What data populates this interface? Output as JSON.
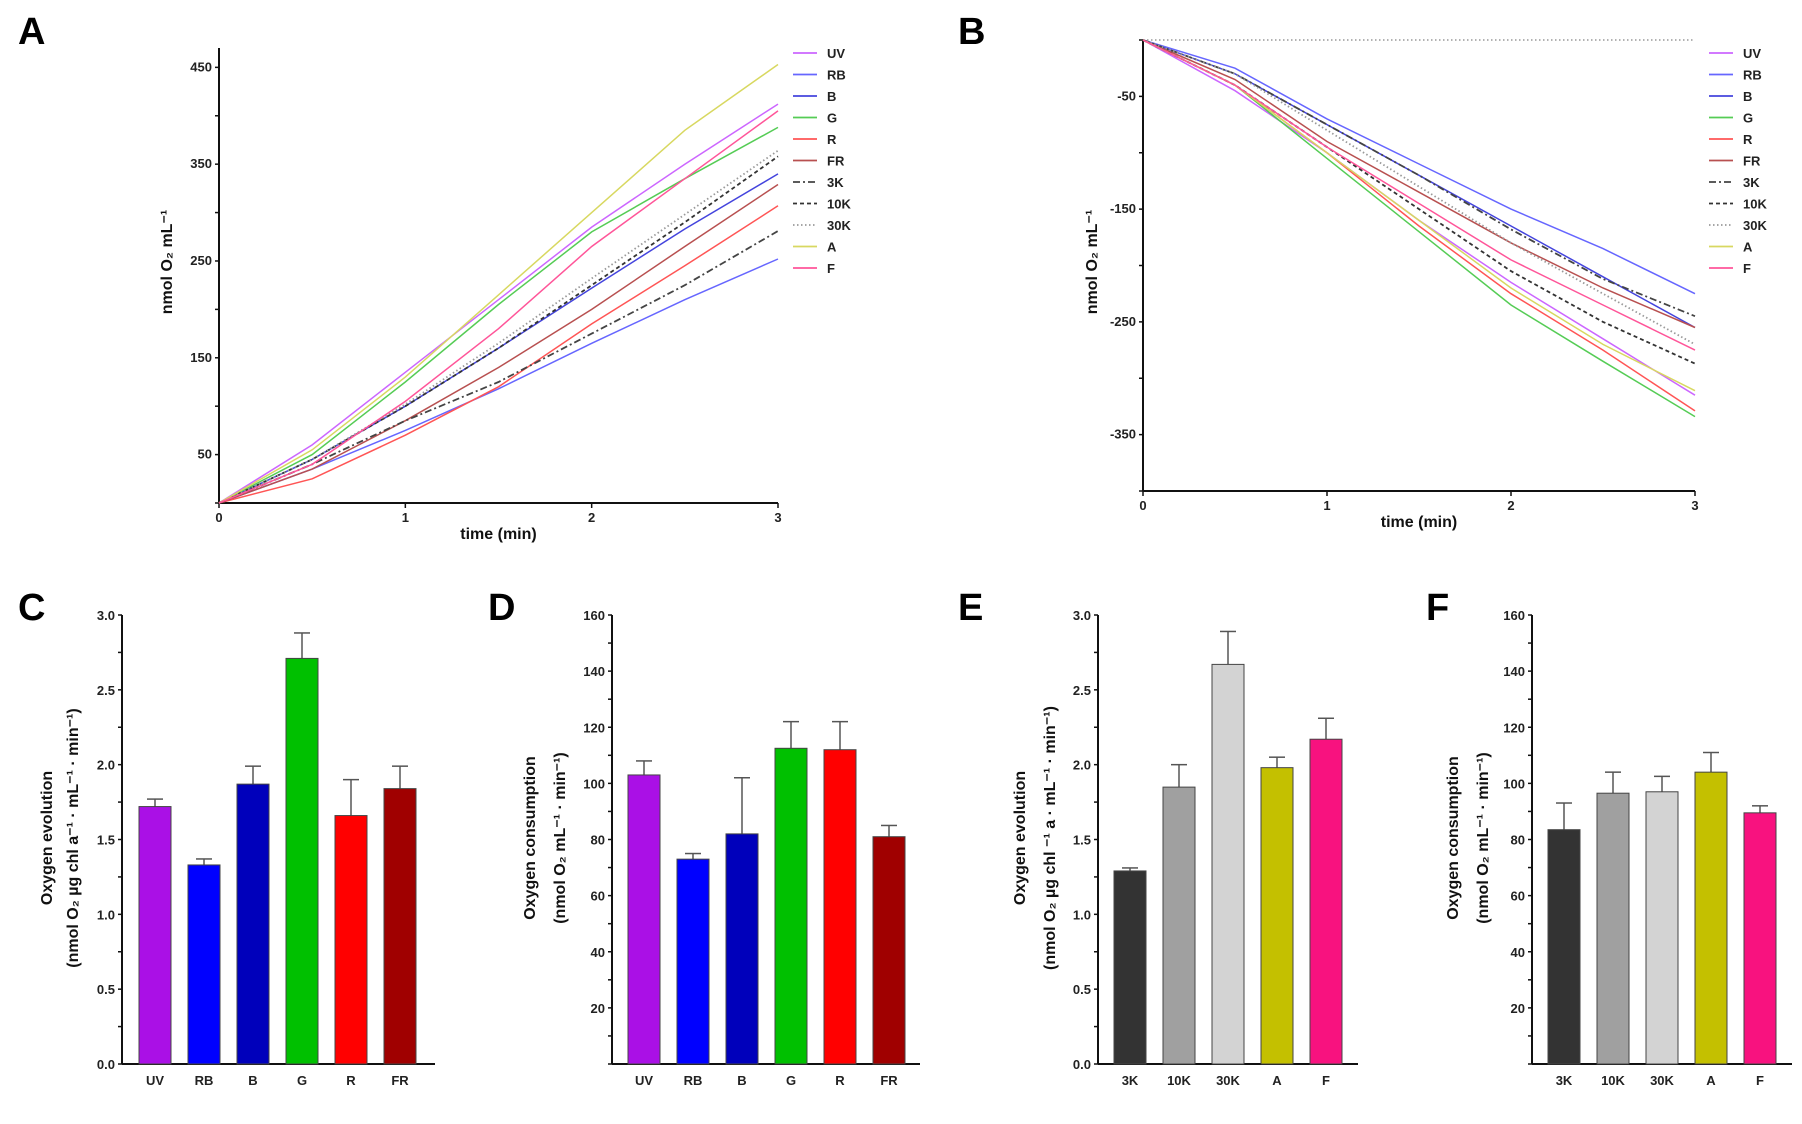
{
  "panel_labels": [
    "A",
    "B",
    "C",
    "D",
    "E",
    "F"
  ],
  "chart_data": [
    {
      "panel": "A",
      "type": "line",
      "xlabel": "time (min)",
      "ylabel": "nmol O₂ mL⁻¹",
      "xlim": [
        0,
        3
      ],
      "ylim": [
        0,
        470
      ],
      "x_ticks": [
        0,
        1,
        2,
        3
      ],
      "y_ticks": [
        50,
        150,
        250,
        350,
        450
      ],
      "x": [
        0,
        0.5,
        1,
        1.5,
        2,
        2.5,
        3
      ],
      "legend_position": "right",
      "series": [
        {
          "name": "UV",
          "color": "#cc66ff",
          "style": "solid",
          "values": [
            0,
            60,
            135,
            210,
            285,
            350,
            412
          ]
        },
        {
          "name": "RB",
          "color": "#6666ff",
          "style": "solid",
          "values": [
            0,
            35,
            75,
            118,
            165,
            210,
            252
          ]
        },
        {
          "name": "B",
          "color": "#4444dd",
          "style": "solid",
          "values": [
            0,
            45,
            100,
            160,
            222,
            283,
            340
          ]
        },
        {
          "name": "G",
          "color": "#55cc55",
          "style": "solid",
          "values": [
            0,
            50,
            125,
            205,
            280,
            335,
            388
          ]
        },
        {
          "name": "R",
          "color": "#ff5555",
          "style": "solid",
          "values": [
            0,
            25,
            70,
            120,
            185,
            245,
            307
          ]
        },
        {
          "name": "FR",
          "color": "#b85050",
          "style": "solid",
          "values": [
            0,
            35,
            85,
            140,
            200,
            265,
            329
          ]
        },
        {
          "name": "3K",
          "color": "#444444",
          "style": "dash-dot",
          "values": [
            0,
            40,
            85,
            125,
            175,
            225,
            281
          ]
        },
        {
          "name": "10K",
          "color": "#333333",
          "style": "dashed",
          "values": [
            0,
            45,
            100,
            160,
            225,
            290,
            358
          ]
        },
        {
          "name": "30K",
          "color": "#999999",
          "style": "dotted",
          "values": [
            0,
            45,
            102,
            165,
            232,
            298,
            364
          ]
        },
        {
          "name": "A",
          "color": "#d8d860",
          "style": "solid",
          "values": [
            0,
            55,
            130,
            215,
            300,
            385,
            453
          ]
        },
        {
          "name": "F",
          "color": "#ff5599",
          "style": "solid",
          "values": [
            0,
            40,
            105,
            180,
            265,
            335,
            405
          ]
        }
      ]
    },
    {
      "panel": "B",
      "type": "line",
      "xlabel": "time (min)",
      "ylabel": "nmol O₂ mL⁻¹",
      "xlim": [
        0,
        3
      ],
      "ylim": [
        -400,
        0
      ],
      "x_ticks": [
        0,
        1,
        2,
        3
      ],
      "y_ticks": [
        -50,
        -150,
        -250,
        -350
      ],
      "x": [
        0,
        0.5,
        1,
        1.5,
        2,
        2.5,
        3
      ],
      "reference_line": 0,
      "legend_position": "right",
      "series": [
        {
          "name": "UV",
          "color": "#cc66ff",
          "style": "solid",
          "values": [
            0,
            -45,
            -100,
            -160,
            -215,
            -265,
            -315
          ]
        },
        {
          "name": "RB",
          "color": "#6666ff",
          "style": "solid",
          "values": [
            0,
            -25,
            -70,
            -110,
            -150,
            -185,
            -225
          ]
        },
        {
          "name": "B",
          "color": "#4444dd",
          "style": "solid",
          "values": [
            0,
            -30,
            -75,
            -120,
            -165,
            -210,
            -255
          ]
        },
        {
          "name": "G",
          "color": "#55cc55",
          "style": "solid",
          "values": [
            0,
            -40,
            -105,
            -170,
            -235,
            -285,
            -334
          ]
        },
        {
          "name": "R",
          "color": "#ff5555",
          "style": "solid",
          "values": [
            0,
            -40,
            -100,
            -165,
            -225,
            -275,
            -329
          ]
        },
        {
          "name": "FR",
          "color": "#b85050",
          "style": "solid",
          "values": [
            0,
            -35,
            -90,
            -135,
            -180,
            -220,
            -255
          ]
        },
        {
          "name": "3K",
          "color": "#444444",
          "style": "dash-dot",
          "values": [
            0,
            -30,
            -75,
            -120,
            -168,
            -212,
            -245
          ]
        },
        {
          "name": "10K",
          "color": "#333333",
          "style": "dashed",
          "values": [
            0,
            -40,
            -95,
            -150,
            -205,
            -250,
            -287
          ]
        },
        {
          "name": "30K",
          "color": "#999999",
          "style": "dotted",
          "values": [
            0,
            -30,
            -80,
            -130,
            -180,
            -225,
            -270
          ]
        },
        {
          "name": "A",
          "color": "#d8d860",
          "style": "solid",
          "values": [
            0,
            -40,
            -100,
            -160,
            -220,
            -270,
            -311
          ]
        },
        {
          "name": "F",
          "color": "#ff5599",
          "style": "solid",
          "values": [
            0,
            -40,
            -95,
            -145,
            -195,
            -235,
            -275
          ]
        }
      ]
    },
    {
      "panel": "C",
      "type": "bar",
      "ylabel": [
        "Oxygen evolution",
        "(nmol O₂ µg chl a⁻¹ · mL⁻¹ · min⁻¹)"
      ],
      "ylim": [
        0,
        3.0
      ],
      "y_ticks": [
        "0.0",
        "0.5",
        "1.0",
        "1.5",
        "2.0",
        "2.5",
        "3.0"
      ],
      "categories": [
        "UV",
        "RB",
        "B",
        "G",
        "R",
        "FR"
      ],
      "values": [
        1.72,
        1.33,
        1.87,
        2.71,
        1.66,
        1.84
      ],
      "errors": [
        0.05,
        0.04,
        0.12,
        0.17,
        0.24,
        0.15
      ],
      "colors": [
        "#aa10e6",
        "#0000ff",
        "#0000bb",
        "#00c000",
        "#ff0000",
        "#a00000"
      ]
    },
    {
      "panel": "D",
      "type": "bar",
      "ylabel": [
        "Oxygen consumption",
        "(nmol O₂ mL⁻¹ · min⁻¹)"
      ],
      "ylim": [
        0,
        160
      ],
      "y_ticks": [
        "20",
        "40",
        "60",
        "80",
        "100",
        "120",
        "140",
        "160"
      ],
      "categories": [
        "UV",
        "RB",
        "B",
        "G",
        "R",
        "FR"
      ],
      "values": [
        103,
        73,
        82,
        112.5,
        112,
        81
      ],
      "errors": [
        5,
        2,
        20,
        9.5,
        10,
        4
      ],
      "colors": [
        "#aa10e6",
        "#0000ff",
        "#0000bb",
        "#00c000",
        "#ff0000",
        "#a00000"
      ]
    },
    {
      "panel": "E",
      "type": "bar",
      "ylabel": [
        "Oxygen evolution",
        "(nmol O₂ µg chl ⁻¹ a · mL⁻¹ · min⁻¹)"
      ],
      "ylim": [
        0,
        3.0
      ],
      "y_ticks": [
        "0.0",
        "0.5",
        "1.0",
        "1.5",
        "2.0",
        "2.5",
        "3.0"
      ],
      "categories": [
        "3K",
        "10K",
        "30K",
        "A",
        "F"
      ],
      "values": [
        1.29,
        1.85,
        2.67,
        1.98,
        2.17
      ],
      "errors": [
        0.02,
        0.15,
        0.22,
        0.07,
        0.14
      ],
      "colors": [
        "#333333",
        "#a0a0a0",
        "#d3d3d3",
        "#c4c000",
        "#f8127f"
      ]
    },
    {
      "panel": "F",
      "type": "bar",
      "ylabel": [
        "Oxygen consumption",
        "(nmol O₂ mL⁻¹ · min⁻¹)"
      ],
      "ylim": [
        0,
        160
      ],
      "y_ticks": [
        "20",
        "40",
        "60",
        "80",
        "100",
        "120",
        "140",
        "160"
      ],
      "categories": [
        "3K",
        "10K",
        "30K",
        "A",
        "F"
      ],
      "values": [
        83.5,
        96.5,
        97,
        104,
        89.5
      ],
      "errors": [
        9.5,
        7.5,
        5.5,
        7,
        2.5
      ],
      "colors": [
        "#333333",
        "#a0a0a0",
        "#d3d3d3",
        "#c4c000",
        "#f8127f"
      ]
    }
  ]
}
